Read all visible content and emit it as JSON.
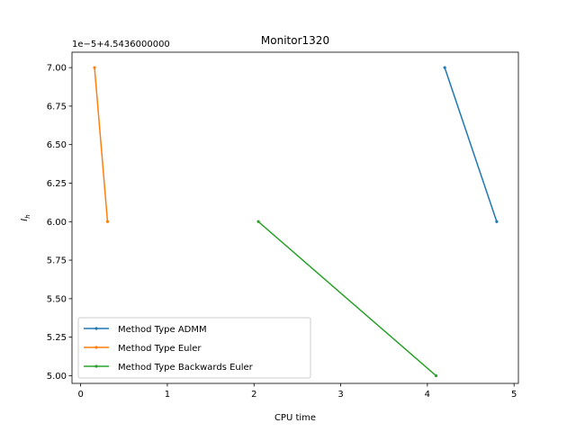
{
  "chart_data": {
    "type": "line",
    "title": "Monitor1320",
    "xlabel": "CPU time",
    "ylabel": "I_h",
    "offset_text": "1e−5+4.5436000000",
    "xlim": [
      -0.1,
      5.05
    ],
    "ylim": [
      4.95,
      7.1
    ],
    "x_ticks": [
      0,
      1,
      2,
      3,
      4,
      5
    ],
    "x_tick_labels": [
      "0",
      "1",
      "2",
      "3",
      "4",
      "5"
    ],
    "y_ticks": [
      5.0,
      5.25,
      5.5,
      5.75,
      6.0,
      6.25,
      6.5,
      6.75,
      7.0
    ],
    "y_tick_labels": [
      "5.00",
      "5.25",
      "5.50",
      "5.75",
      "6.00",
      "6.25",
      "6.50",
      "6.75",
      "7.00"
    ],
    "grid": false,
    "legend_position": "lower-left",
    "series": [
      {
        "name": "Method Type ADMM",
        "color": "#1f77b4",
        "x": [
          4.2,
          4.8
        ],
        "y": [
          7.0,
          6.0
        ]
      },
      {
        "name": "Method Type Euler",
        "color": "#ff7f0e",
        "x": [
          0.16,
          0.31
        ],
        "y": [
          7.0,
          6.0
        ]
      },
      {
        "name": "Method Type Backwards Euler",
        "color": "#2ca02c",
        "x": [
          2.05,
          4.1
        ],
        "y": [
          6.0,
          5.0
        ]
      }
    ]
  }
}
